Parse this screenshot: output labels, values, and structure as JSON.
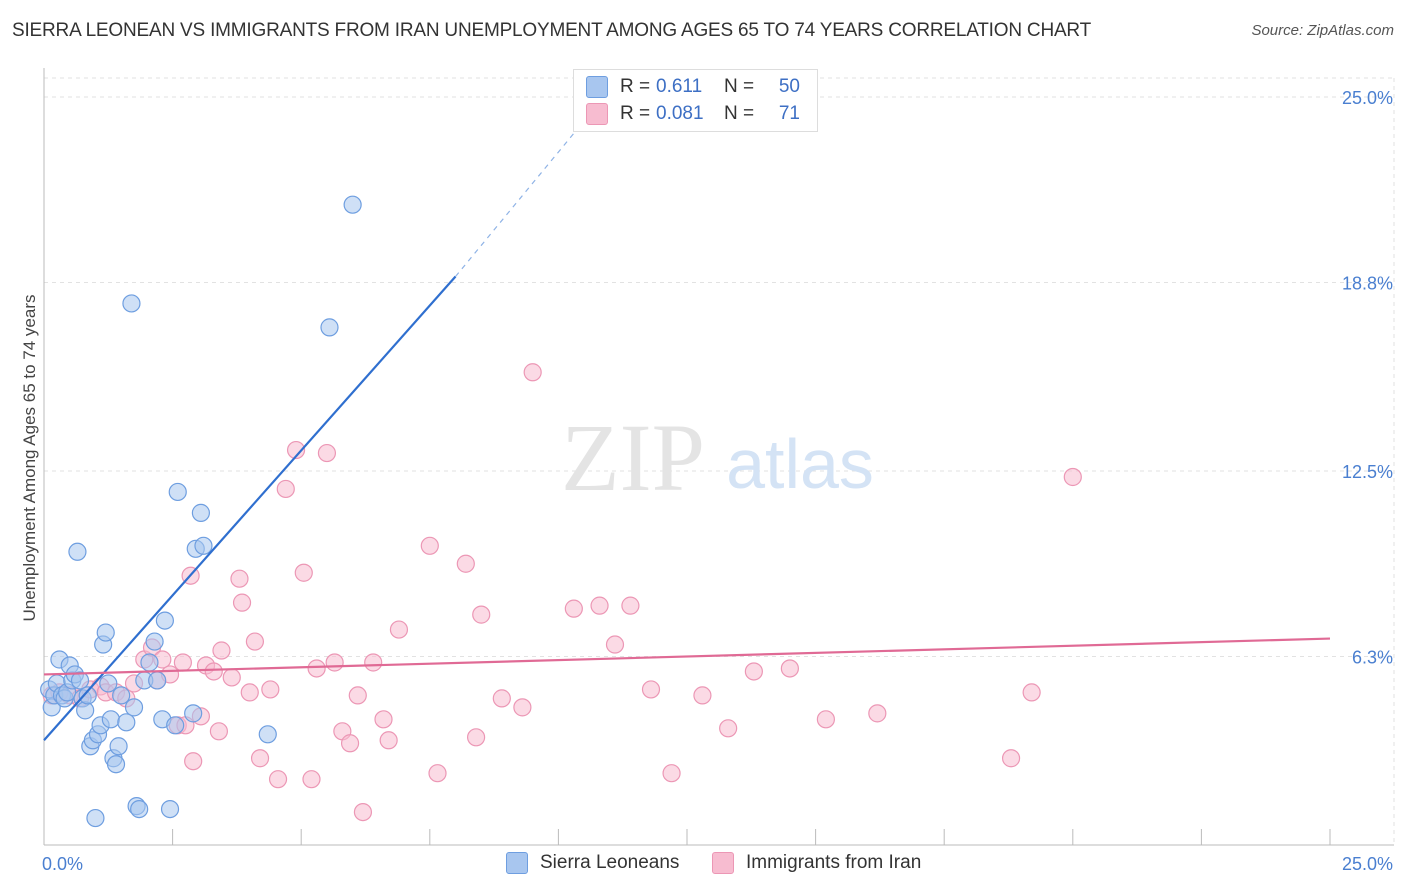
{
  "title": "SIERRA LEONEAN VS IMMIGRANTS FROM IRAN UNEMPLOYMENT AMONG AGES 65 TO 74 YEARS CORRELATION CHART",
  "source": "Source: ZipAtlas.com",
  "watermark": {
    "zip": "ZIP",
    "atlas": "atlas"
  },
  "legend": {
    "rows": [
      {
        "r_label": "R =",
        "r_value": "0.611",
        "n_label": "N =",
        "n_value": "50"
      },
      {
        "r_label": "R =",
        "r_value": "0.081",
        "n_label": "N =",
        "n_value": "71"
      }
    ]
  },
  "bottom_legend": {
    "series1": "Sierra Leoneans",
    "series2": "Immigrants from Iran"
  },
  "colors": {
    "blue_fill": "#a8c6ef",
    "blue_stroke": "#6e9ee0",
    "blue_line": "#2f6fcf",
    "pink_fill": "#f7bcd0",
    "pink_stroke": "#ec97b5",
    "pink_line": "#e06a95",
    "tick_label": "#4a7fd0",
    "grid": "#e2e2e2"
  },
  "chart_data": {
    "type": "scatter",
    "title": "SIERRA LEONEAN VS IMMIGRANTS FROM IRAN UNEMPLOYMENT AMONG AGES 65 TO 74 YEARS CORRELATION CHART",
    "xlabel": "",
    "ylabel": "Unemployment Among Ages 65 to 74 years",
    "xlim": [
      0,
      25
    ],
    "ylim": [
      0,
      25
    ],
    "x_tick_labels": [
      "0.0%",
      "25.0%"
    ],
    "y_ticks": [
      6.3,
      12.5,
      18.8,
      25.0
    ],
    "y_tick_labels": [
      "6.3%",
      "12.5%",
      "18.8%",
      "25.0%"
    ],
    "grid": true,
    "legend_position": "top-center",
    "series": [
      {
        "name": "Sierra Leoneans",
        "color": "#a8c6ef",
        "r": 0.611,
        "n": 50,
        "trend": {
          "x0": 0.0,
          "y0": 3.5,
          "x1": 8.0,
          "y1": 19.0,
          "dashed_to_x": 10.5,
          "dashed_to_y": 24.2
        },
        "points": [
          [
            0.1,
            5.2
          ],
          [
            0.15,
            4.6
          ],
          [
            0.2,
            5.0
          ],
          [
            0.25,
            5.4
          ],
          [
            0.3,
            6.2
          ],
          [
            0.35,
            5.0
          ],
          [
            0.4,
            4.9
          ],
          [
            0.45,
            5.1
          ],
          [
            0.5,
            6.0
          ],
          [
            0.55,
            5.5
          ],
          [
            0.6,
            5.7
          ],
          [
            0.65,
            9.8
          ],
          [
            0.7,
            5.5
          ],
          [
            0.75,
            4.9
          ],
          [
            0.8,
            4.5
          ],
          [
            0.85,
            5.0
          ],
          [
            0.9,
            3.3
          ],
          [
            0.95,
            3.5
          ],
          [
            1.0,
            0.9
          ],
          [
            1.05,
            3.7
          ],
          [
            1.1,
            4.0
          ],
          [
            1.15,
            6.7
          ],
          [
            1.2,
            7.1
          ],
          [
            1.25,
            5.4
          ],
          [
            1.3,
            4.2
          ],
          [
            1.35,
            2.9
          ],
          [
            1.4,
            2.7
          ],
          [
            1.45,
            3.3
          ],
          [
            1.5,
            5.0
          ],
          [
            1.6,
            4.1
          ],
          [
            1.7,
            18.1
          ],
          [
            1.75,
            4.6
          ],
          [
            1.8,
            1.3
          ],
          [
            1.85,
            1.2
          ],
          [
            1.95,
            5.5
          ],
          [
            2.05,
            6.1
          ],
          [
            2.15,
            6.8
          ],
          [
            2.2,
            5.5
          ],
          [
            2.3,
            4.2
          ],
          [
            2.35,
            7.5
          ],
          [
            2.45,
            1.2
          ],
          [
            2.55,
            4.0
          ],
          [
            2.6,
            11.8
          ],
          [
            2.9,
            4.4
          ],
          [
            2.95,
            9.9
          ],
          [
            3.05,
            11.1
          ],
          [
            3.1,
            10.0
          ],
          [
            4.35,
            3.7
          ],
          [
            5.55,
            17.3
          ],
          [
            6.0,
            21.4
          ]
        ]
      },
      {
        "name": "Immigrants from Iran",
        "color": "#f7bcd0",
        "r": 0.081,
        "n": 71,
        "trend": {
          "x0": 0.0,
          "y0": 5.7,
          "x1": 25.0,
          "y1": 6.9
        },
        "points": [
          [
            0.15,
            5.0
          ],
          [
            0.3,
            5.1
          ],
          [
            0.5,
            5.0
          ],
          [
            0.7,
            4.9
          ],
          [
            0.9,
            5.2
          ],
          [
            1.1,
            5.3
          ],
          [
            1.2,
            5.1
          ],
          [
            1.4,
            5.1
          ],
          [
            1.6,
            4.9
          ],
          [
            1.75,
            5.4
          ],
          [
            1.95,
            6.2
          ],
          [
            2.1,
            6.6
          ],
          [
            2.2,
            5.5
          ],
          [
            2.3,
            6.2
          ],
          [
            2.45,
            5.7
          ],
          [
            2.6,
            4.0
          ],
          [
            2.75,
            4.0
          ],
          [
            2.85,
            9.0
          ],
          [
            2.9,
            2.8
          ],
          [
            3.05,
            4.3
          ],
          [
            3.15,
            6.0
          ],
          [
            3.3,
            5.8
          ],
          [
            3.45,
            6.5
          ],
          [
            3.65,
            5.6
          ],
          [
            3.8,
            8.9
          ],
          [
            3.85,
            8.1
          ],
          [
            4.0,
            5.1
          ],
          [
            4.1,
            6.8
          ],
          [
            4.2,
            2.9
          ],
          [
            4.4,
            5.2
          ],
          [
            4.55,
            2.2
          ],
          [
            4.7,
            11.9
          ],
          [
            4.9,
            13.2
          ],
          [
            5.05,
            9.1
          ],
          [
            5.2,
            2.2
          ],
          [
            5.3,
            5.9
          ],
          [
            5.5,
            13.1
          ],
          [
            5.65,
            6.1
          ],
          [
            5.8,
            3.8
          ],
          [
            5.95,
            3.4
          ],
          [
            6.1,
            5.0
          ],
          [
            6.2,
            1.1
          ],
          [
            6.4,
            6.1
          ],
          [
            6.6,
            4.2
          ],
          [
            6.7,
            3.5
          ],
          [
            6.9,
            7.2
          ],
          [
            7.5,
            10.0
          ],
          [
            7.65,
            2.4
          ],
          [
            8.2,
            9.4
          ],
          [
            8.4,
            3.6
          ],
          [
            8.5,
            7.7
          ],
          [
            8.9,
            4.9
          ],
          [
            9.3,
            4.6
          ],
          [
            9.5,
            15.8
          ],
          [
            10.3,
            7.9
          ],
          [
            10.8,
            8.0
          ],
          [
            11.1,
            6.7
          ],
          [
            11.4,
            8.0
          ],
          [
            11.8,
            5.2
          ],
          [
            12.2,
            2.4
          ],
          [
            12.8,
            5.0
          ],
          [
            13.3,
            3.9
          ],
          [
            13.8,
            5.8
          ],
          [
            14.5,
            5.9
          ],
          [
            15.2,
            4.2
          ],
          [
            16.2,
            4.4
          ],
          [
            18.8,
            2.9
          ],
          [
            20.0,
            12.3
          ],
          [
            19.2,
            5.1
          ],
          [
            2.7,
            6.1
          ],
          [
            3.4,
            3.8
          ]
        ]
      }
    ]
  }
}
